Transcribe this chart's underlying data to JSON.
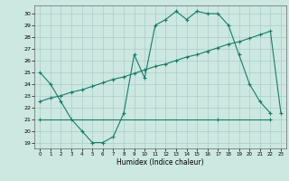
{
  "xlabel": "Humidex (Indice chaleur)",
  "bg_color": "#cce8e0",
  "grid_color": "#aacccc",
  "line_color": "#1a7a6a",
  "xlim": [
    -0.5,
    23.5
  ],
  "ylim": [
    18.5,
    30.7
  ],
  "xticks": [
    0,
    1,
    2,
    3,
    4,
    5,
    6,
    7,
    8,
    9,
    10,
    11,
    12,
    13,
    14,
    15,
    16,
    17,
    18,
    19,
    20,
    21,
    22,
    23
  ],
  "yticks": [
    19,
    20,
    21,
    22,
    23,
    24,
    25,
    26,
    27,
    28,
    29,
    30
  ],
  "line1_x": [
    0,
    1,
    2,
    3,
    4,
    5,
    6,
    7,
    8,
    9,
    10,
    11,
    12,
    13,
    14,
    15,
    16,
    17,
    18,
    19,
    20,
    21,
    22
  ],
  "line1_y": [
    25.0,
    24.0,
    22.5,
    21.0,
    20.0,
    19.0,
    19.0,
    19.5,
    21.5,
    26.5,
    24.5,
    29.0,
    29.5,
    30.2,
    29.5,
    30.2,
    30.0,
    30.0,
    29.0,
    26.5,
    24.0,
    22.5,
    21.5
  ],
  "line2_x": [
    0,
    17,
    22
  ],
  "line2_y": [
    21.0,
    21.0,
    21.0
  ],
  "line3_x": [
    0,
    1,
    2,
    3,
    4,
    5,
    6,
    7,
    8,
    9,
    10,
    11,
    12,
    13,
    14,
    15,
    16,
    17,
    18,
    19,
    20,
    21,
    22,
    23
  ],
  "line3_y": [
    22.5,
    22.8,
    23.0,
    23.3,
    23.5,
    23.8,
    24.1,
    24.4,
    24.6,
    24.9,
    25.2,
    25.5,
    25.7,
    26.0,
    26.3,
    26.5,
    26.8,
    27.1,
    27.4,
    27.6,
    27.9,
    28.2,
    28.5,
    21.5
  ]
}
